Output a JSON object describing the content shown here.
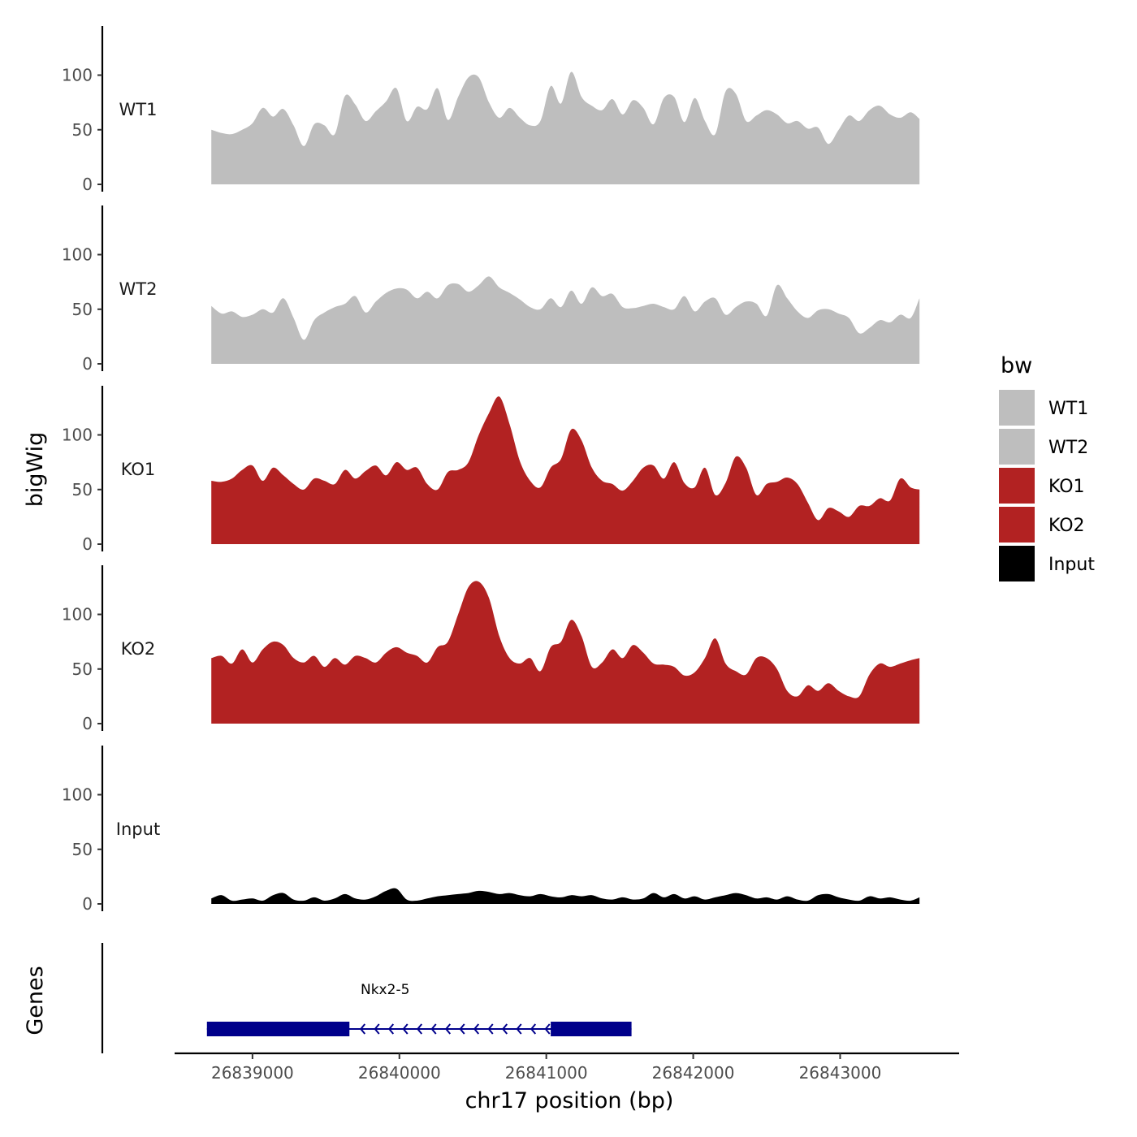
{
  "chart_data": {
    "type": "area",
    "chromosome": "chr17",
    "xlabel": "chr17 position (bp)",
    "ylabel": "bigWig",
    "genes_panel_label": "Genes",
    "xlim": [
      26838470,
      26843810
    ],
    "xticks": [
      26839000,
      26840000,
      26841000,
      26842000,
      26843000
    ],
    "xtick_labels": [
      "26839000",
      "26840000",
      "26841000",
      "26842000",
      "26843000"
    ],
    "ylim": [
      0,
      145
    ],
    "yticks": [
      0,
      50,
      100
    ],
    "ytick_labels": [
      "0",
      "50",
      "100"
    ],
    "legend": {
      "title": "bw",
      "position": "right",
      "entries": [
        {
          "label": "WT1",
          "color": "#bebebe"
        },
        {
          "label": "WT2",
          "color": "#bebebe"
        },
        {
          "label": "KO1",
          "color": "#b22222"
        },
        {
          "label": "KO2",
          "color": "#b22222"
        },
        {
          "label": "Input",
          "color": "#000000"
        }
      ]
    },
    "series": [
      {
        "name": "WT1",
        "color": "#bebebe",
        "x": [
          26838720,
          26838790,
          26838860,
          26838930,
          26839000,
          26839070,
          26839140,
          26839210,
          26839280,
          26839350,
          26839420,
          26839490,
          26839560,
          26839630,
          26839700,
          26839770,
          26839840,
          26839910,
          26839980,
          26840050,
          26840120,
          26840190,
          26840260,
          26840330,
          26840400,
          26840470,
          26840540,
          26840610,
          26840680,
          26840750,
          26840820,
          26840890,
          26840960,
          26841030,
          26841100,
          26841170,
          26841240,
          26841310,
          26841380,
          26841450,
          26841520,
          26841590,
          26841660,
          26841730,
          26841800,
          26841870,
          26841940,
          26842010,
          26842080,
          26842150,
          26842220,
          26842290,
          26842360,
          26842430,
          26842500,
          26842570,
          26842640,
          26842710,
          26842780,
          26842850,
          26842920,
          26842990,
          26843060,
          26843130,
          26843200,
          26843270,
          26843340,
          26843410,
          26843480,
          26843540
        ],
        "values": [
          50,
          47,
          46,
          50,
          56,
          70,
          62,
          69,
          54,
          35,
          55,
          54,
          46,
          81,
          73,
          58,
          67,
          76,
          88,
          58,
          71,
          69,
          88,
          59,
          80,
          98,
          98,
          75,
          61,
          70,
          61,
          54,
          58,
          90,
          74,
          103,
          80,
          72,
          68,
          78,
          64,
          77,
          70,
          55,
          79,
          80,
          57,
          79,
          58,
          46,
          85,
          83,
          58,
          63,
          68,
          64,
          56,
          58,
          51,
          52,
          37,
          50,
          63,
          58,
          68,
          72,
          64,
          61,
          66,
          60
        ]
      },
      {
        "name": "WT2",
        "color": "#bebebe",
        "x": [
          26838720,
          26838790,
          26838860,
          26838930,
          26839000,
          26839070,
          26839140,
          26839210,
          26839280,
          26839350,
          26839420,
          26839490,
          26839560,
          26839630,
          26839700,
          26839770,
          26839840,
          26839910,
          26839980,
          26840050,
          26840120,
          26840190,
          26840260,
          26840330,
          26840400,
          26840470,
          26840540,
          26840610,
          26840680,
          26840750,
          26840820,
          26840890,
          26840960,
          26841030,
          26841100,
          26841170,
          26841240,
          26841310,
          26841380,
          26841450,
          26841520,
          26841590,
          26841660,
          26841730,
          26841800,
          26841870,
          26841940,
          26842010,
          26842080,
          26842150,
          26842220,
          26842290,
          26842360,
          26842430,
          26842500,
          26842570,
          26842640,
          26842710,
          26842780,
          26842850,
          26842920,
          26842990,
          26843060,
          26843130,
          26843200,
          26843270,
          26843340,
          26843410,
          26843480,
          26843540
        ],
        "values": [
          53,
          46,
          48,
          43,
          45,
          50,
          47,
          60,
          42,
          22,
          40,
          47,
          52,
          55,
          62,
          47,
          57,
          65,
          69,
          68,
          60,
          66,
          60,
          72,
          73,
          66,
          72,
          80,
          70,
          65,
          59,
          52,
          50,
          60,
          52,
          67,
          55,
          70,
          62,
          64,
          52,
          51,
          53,
          55,
          52,
          50,
          62,
          48,
          57,
          60,
          45,
          52,
          57,
          55,
          44,
          72,
          60,
          48,
          42,
          49,
          50,
          46,
          42,
          28,
          33,
          40,
          38,
          45,
          42,
          60
        ]
      },
      {
        "name": "KO1",
        "color": "#b22222",
        "x": [
          26838720,
          26838790,
          26838860,
          26838930,
          26839000,
          26839070,
          26839140,
          26839210,
          26839280,
          26839350,
          26839420,
          26839490,
          26839560,
          26839630,
          26839700,
          26839770,
          26839840,
          26839910,
          26839980,
          26840050,
          26840120,
          26840190,
          26840260,
          26840330,
          26840400,
          26840470,
          26840540,
          26840610,
          26840680,
          26840750,
          26840820,
          26840890,
          26840960,
          26841030,
          26841100,
          26841170,
          26841240,
          26841310,
          26841380,
          26841450,
          26841520,
          26841590,
          26841660,
          26841730,
          26841800,
          26841870,
          26841940,
          26842010,
          26842080,
          26842150,
          26842220,
          26842290,
          26842360,
          26842430,
          26842500,
          26842570,
          26842640,
          26842710,
          26842780,
          26842850,
          26842920,
          26842990,
          26843060,
          26843130,
          26843200,
          26843270,
          26843340,
          26843410,
          26843480,
          26843540
        ],
        "values": [
          58,
          57,
          60,
          68,
          72,
          58,
          70,
          63,
          55,
          50,
          60,
          58,
          55,
          68,
          60,
          67,
          72,
          63,
          75,
          68,
          70,
          55,
          50,
          66,
          68,
          75,
          100,
          120,
          135,
          110,
          76,
          58,
          52,
          70,
          78,
          105,
          95,
          70,
          58,
          55,
          49,
          58,
          70,
          72,
          60,
          75,
          56,
          52,
          70,
          45,
          56,
          80,
          70,
          45,
          55,
          57,
          61,
          55,
          38,
          22,
          33,
          30,
          25,
          35,
          35,
          42,
          40,
          60,
          52,
          50
        ]
      },
      {
        "name": "KO2",
        "color": "#b22222",
        "x": [
          26838720,
          26838790,
          26838860,
          26838930,
          26839000,
          26839070,
          26839140,
          26839210,
          26839280,
          26839350,
          26839420,
          26839490,
          26839560,
          26839630,
          26839700,
          26839770,
          26839840,
          26839910,
          26839980,
          26840050,
          26840120,
          26840190,
          26840260,
          26840330,
          26840400,
          26840470,
          26840540,
          26840610,
          26840680,
          26840750,
          26840820,
          26840890,
          26840960,
          26841030,
          26841100,
          26841170,
          26841240,
          26841310,
          26841380,
          26841450,
          26841520,
          26841590,
          26841660,
          26841730,
          26841800,
          26841870,
          26841940,
          26842010,
          26842080,
          26842150,
          26842220,
          26842290,
          26842360,
          26842430,
          26842500,
          26842570,
          26842640,
          26842710,
          26842780,
          26842850,
          26842920,
          26842990,
          26843060,
          26843130,
          26843200,
          26843270,
          26843340,
          26843410,
          26843480,
          26843540
        ],
        "values": [
          60,
          62,
          55,
          68,
          56,
          68,
          75,
          72,
          60,
          56,
          62,
          52,
          60,
          54,
          62,
          60,
          56,
          65,
          70,
          65,
          62,
          56,
          70,
          75,
          100,
          125,
          130,
          115,
          80,
          60,
          55,
          60,
          48,
          70,
          75,
          95,
          80,
          52,
          56,
          68,
          60,
          72,
          65,
          55,
          54,
          52,
          44,
          47,
          60,
          78,
          55,
          48,
          45,
          60,
          60,
          50,
          30,
          25,
          35,
          30,
          37,
          30,
          25,
          25,
          45,
          55,
          52,
          55,
          58,
          60
        ]
      },
      {
        "name": "Input",
        "color": "#000000",
        "x": [
          26838720,
          26838790,
          26838860,
          26838930,
          26839000,
          26839070,
          26839140,
          26839210,
          26839280,
          26839350,
          26839420,
          26839490,
          26839560,
          26839630,
          26839700,
          26839770,
          26839840,
          26839910,
          26839980,
          26840050,
          26840120,
          26840190,
          26840260,
          26840330,
          26840400,
          26840470,
          26840540,
          26840610,
          26840680,
          26840750,
          26840820,
          26840890,
          26840960,
          26841030,
          26841100,
          26841170,
          26841240,
          26841310,
          26841380,
          26841450,
          26841520,
          26841590,
          26841660,
          26841730,
          26841800,
          26841870,
          26841940,
          26842010,
          26842080,
          26842150,
          26842220,
          26842290,
          26842360,
          26842430,
          26842500,
          26842570,
          26842640,
          26842710,
          26842780,
          26842850,
          26842920,
          26842990,
          26843060,
          26843130,
          26843200,
          26843270,
          26843340,
          26843410,
          26843480,
          26843540
        ],
        "values": [
          5,
          8,
          3,
          4,
          5,
          3,
          8,
          10,
          4,
          3,
          6,
          3,
          5,
          9,
          5,
          4,
          7,
          12,
          14,
          4,
          3,
          5,
          7,
          8,
          9,
          10,
          12,
          11,
          9,
          10,
          8,
          7,
          9,
          7,
          6,
          8,
          7,
          8,
          5,
          4,
          6,
          4,
          5,
          10,
          6,
          9,
          5,
          7,
          4,
          6,
          8,
          10,
          8,
          5,
          6,
          4,
          7,
          4,
          3,
          8,
          9,
          6,
          4,
          3,
          7,
          5,
          6,
          4,
          3,
          6
        ]
      }
    ],
    "genes": [
      {
        "name": "Nkx2-5",
        "strand": "-",
        "start": 26838690,
        "end": 26841580,
        "exons": [
          [
            26838690,
            26839660
          ],
          [
            26841030,
            26841580
          ]
        ],
        "color": "#00008b"
      }
    ]
  }
}
